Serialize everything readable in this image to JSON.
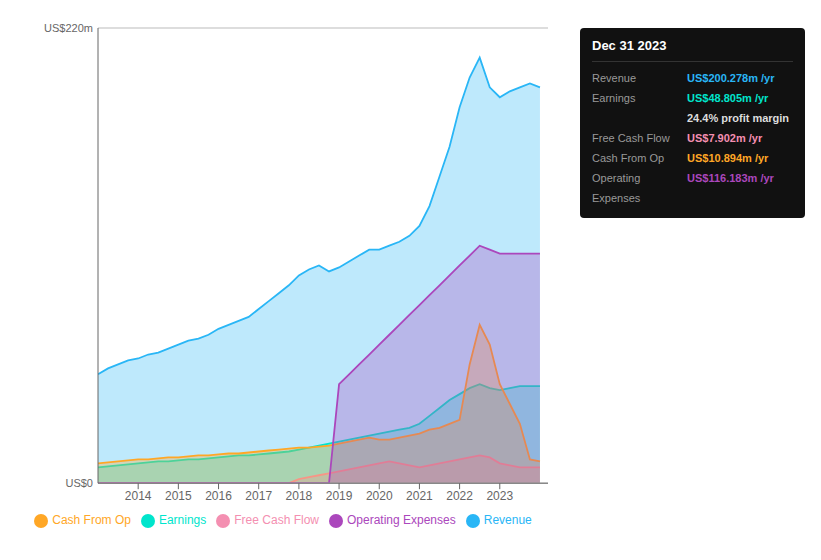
{
  "chart_data": {
    "type": "area",
    "x": [
      2013,
      2013.25,
      2013.5,
      2013.75,
      2014,
      2014.25,
      2014.5,
      2014.75,
      2015,
      2015.25,
      2015.5,
      2015.75,
      2016,
      2016.25,
      2016.5,
      2016.75,
      2017,
      2017.25,
      2017.5,
      2017.75,
      2018,
      2018.25,
      2018.5,
      2018.75,
      2019,
      2019.25,
      2019.5,
      2019.75,
      2020,
      2020.25,
      2020.5,
      2020.75,
      2021,
      2021.25,
      2021.5,
      2021.75,
      2022,
      2022.25,
      2022.5,
      2022.75,
      2023,
      2023.25,
      2023.5,
      2023.75,
      2024
    ],
    "series": [
      {
        "name": "Revenue",
        "color": "#29b6f6",
        "values": [
          55,
          58,
          60,
          62,
          63,
          65,
          66,
          68,
          70,
          72,
          73,
          75,
          78,
          80,
          82,
          84,
          88,
          92,
          96,
          100,
          105,
          108,
          110,
          107,
          109,
          112,
          115,
          118,
          118,
          120,
          122,
          125,
          130,
          140,
          155,
          170,
          190,
          205,
          215,
          200,
          195,
          198,
          200,
          202,
          200
        ]
      },
      {
        "name": "Earnings",
        "color": "#00e5cc",
        "values": [
          8,
          8.5,
          9,
          9.5,
          10,
          10.5,
          11,
          11,
          11.5,
          12,
          12,
          12.5,
          13,
          13.5,
          14,
          14,
          14.5,
          15,
          15.5,
          16,
          17,
          18,
          19,
          20,
          21,
          22,
          23,
          24,
          25,
          26,
          27,
          28,
          30,
          34,
          38,
          42,
          45,
          48,
          50,
          48,
          47,
          48,
          49,
          49,
          49
        ]
      },
      {
        "name": "Free Cash Flow",
        "color": "#f48fb1",
        "values": [
          0,
          0,
          0,
          0,
          0,
          0,
          0,
          0,
          0,
          0,
          0,
          0,
          0,
          0,
          0,
          0,
          0,
          0,
          0,
          0,
          2,
          3,
          4,
          5,
          6,
          7,
          8,
          9,
          10,
          11,
          10,
          9,
          8,
          9,
          10,
          11,
          12,
          13,
          14,
          13,
          10,
          9,
          8,
          8,
          8
        ]
      },
      {
        "name": "Cash From Op",
        "color": "#ffa726",
        "values": [
          10,
          10.5,
          11,
          11.5,
          12,
          12,
          12.5,
          13,
          13,
          13.5,
          14,
          14,
          14.5,
          15,
          15,
          15.5,
          16,
          16.5,
          17,
          17.5,
          18,
          18,
          18.5,
          19,
          20,
          21,
          22,
          23,
          22,
          22,
          23,
          24,
          25,
          27,
          28,
          30,
          32,
          60,
          80,
          70,
          50,
          40,
          30,
          12,
          11
        ]
      },
      {
        "name": "Operating Expenses",
        "color": "#ab47bc",
        "values": [
          0,
          0,
          0,
          0,
          0,
          0,
          0,
          0,
          0,
          0,
          0,
          0,
          0,
          0,
          0,
          0,
          0,
          0,
          0,
          0,
          0,
          0,
          0,
          0,
          50,
          55,
          60,
          65,
          70,
          75,
          80,
          85,
          90,
          95,
          100,
          105,
          110,
          115,
          120,
          118,
          116,
          116,
          116,
          116,
          116
        ]
      }
    ],
    "xlim": [
      2013,
      2024.2
    ],
    "xticks": [
      2014,
      2015,
      2016,
      2017,
      2018,
      2019,
      2020,
      2021,
      2022,
      2023
    ],
    "ylim": [
      0,
      230
    ],
    "yticks": [
      55,
      110,
      165,
      220
    ],
    "grid": true,
    "tick_labels": "x",
    "legend": "bottom",
    "annotations": [
      "US$220m",
      "US$0"
    ],
    "info_box": {
      "title": "Dec 31 2023",
      "rows": [
        {
          "label": "Revenue",
          "value": "US$200.278m /yr",
          "color": "#29b6f6"
        },
        {
          "label": "Earnings",
          "value": "US$48.805m /yr",
          "color": "#00e5cc"
        },
        {
          "value": "24.4% profit margin",
          "color": "#dddddd"
        },
        {
          "label": "Free Cash Flow",
          "value": "US$7.902m /yr",
          "color": "#f48fb1"
        },
        {
          "label": "Cash From Op",
          "value": "US$10.894m /yr",
          "color": "#ffa726"
        },
        {
          "label": "Operating Expenses",
          "value": "US$116.183m /yr",
          "color": "#ab47bc"
        }
      ]
    }
  }
}
